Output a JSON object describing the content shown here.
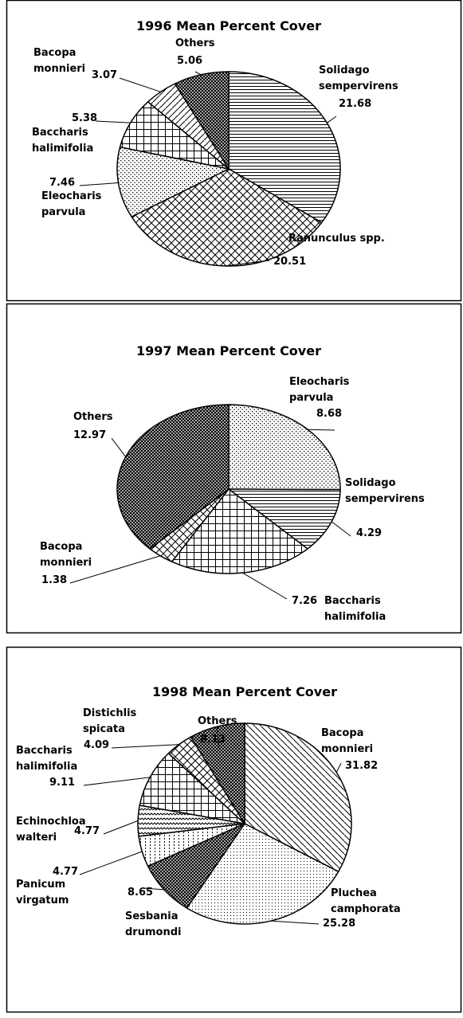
{
  "chart_data": [
    {
      "type": "pie",
      "title": "1996 Mean Percent Cover",
      "categories": [
        "Solidago sempervirens",
        "Ranunculus spp.",
        "Eleocharis parvula",
        "Baccharis halimifolia",
        "Bacopa monnieri",
        "Others"
      ],
      "values": [
        21.68,
        20.51,
        7.46,
        5.38,
        3.07,
        5.06
      ]
    },
    {
      "type": "pie",
      "title": "1997 Mean Percent Cover",
      "categories": [
        "Eleocharis parvula",
        "Solidago sempervirens",
        "Baccharis halimifolia",
        "Bacopa monnieri",
        "Others"
      ],
      "values": [
        8.68,
        4.29,
        7.26,
        1.38,
        12.97
      ]
    },
    {
      "type": "pie",
      "title": "1998 Mean Percent Cover",
      "categories": [
        "Bacopa monnieri",
        "Pluchea camphorata",
        "Sesbania drumondi",
        "Panicum virgatum",
        "Echinochloa walteri",
        "Baccharis halimifolia",
        "Distichlis spicata",
        "Others"
      ],
      "values": [
        31.82,
        25.28,
        8.65,
        4.77,
        4.77,
        9.11,
        4.09,
        8.13
      ]
    }
  ]
}
